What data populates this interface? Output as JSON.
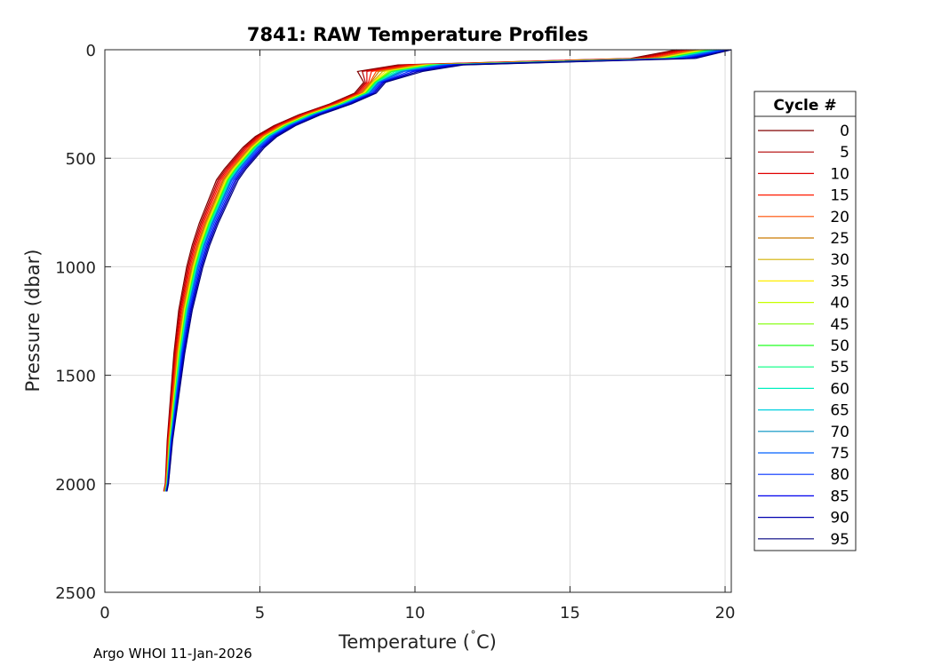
{
  "chart_data": {
    "type": "line",
    "title": "7841: RAW Temperature Profiles",
    "xlabel": "Temperature (",
    "xlabel_degree": "˚",
    "xlabel_unit": "C)",
    "ylabel": "Pressure (dbar)",
    "xlim": [
      0,
      20.2
    ],
    "ylim": [
      0,
      2500
    ],
    "y_reversed": true,
    "grid": true,
    "x_ticks": [
      "0",
      "5",
      "10",
      "15",
      "20"
    ],
    "y_ticks": [
      "0",
      "500",
      "1000",
      "1500",
      "2000",
      "2500"
    ],
    "legend": {
      "title": "Cycle #",
      "placement": "right",
      "entries": [
        {
          "label": "0",
          "color": "#800000"
        },
        {
          "label": "5",
          "color": "#b00000"
        },
        {
          "label": "10",
          "color": "#e00000"
        },
        {
          "label": "15",
          "color": "#ff1a00"
        },
        {
          "label": "20",
          "color": "#ff4d00"
        },
        {
          "label": "25",
          "color": "#cc7a00"
        },
        {
          "label": "30",
          "color": "#d4b000"
        },
        {
          "label": "35",
          "color": "#ffee00"
        },
        {
          "label": "40",
          "color": "#c8ff00"
        },
        {
          "label": "45",
          "color": "#7fff00"
        },
        {
          "label": "50",
          "color": "#22ff22"
        },
        {
          "label": "55",
          "color": "#00ff80"
        },
        {
          "label": "60",
          "color": "#00f0c0"
        },
        {
          "label": "65",
          "color": "#00d0e0"
        },
        {
          "label": "70",
          "color": "#0090c0"
        },
        {
          "label": "75",
          "color": "#0060ff"
        },
        {
          "label": "80",
          "color": "#0030ff"
        },
        {
          "label": "85",
          "color": "#0000ee"
        },
        {
          "label": "90",
          "color": "#0000b0"
        },
        {
          "label": "95",
          "color": "#000080"
        }
      ]
    },
    "series_profile": {
      "pressure": [
        0,
        40,
        70,
        100,
        150,
        200,
        250,
        300,
        350,
        400,
        450,
        500,
        550,
        600,
        700,
        800,
        900,
        1000,
        1100,
        1200,
        1400,
        1600,
        1800,
        2000,
        2035
      ],
      "temp_mean": [
        19.5,
        18.0,
        10.5,
        9.2,
        8.7,
        8.4,
        7.6,
        6.6,
        5.8,
        5.2,
        4.8,
        4.5,
        4.2,
        3.95,
        3.65,
        3.35,
        3.1,
        2.9,
        2.75,
        2.6,
        2.4,
        2.25,
        2.1,
        2.0,
        1.95
      ],
      "temp_offsets": [
        -0.35,
        -0.3,
        -0.25,
        -0.2,
        -0.15,
        -0.12,
        -0.08,
        -0.05,
        -0.02,
        0.0,
        0.02,
        0.05,
        0.08,
        0.1,
        0.12,
        0.15,
        0.2,
        0.25,
        0.3,
        0.35
      ]
    },
    "footer": "Argo WHOI 11-Jan-2026"
  }
}
